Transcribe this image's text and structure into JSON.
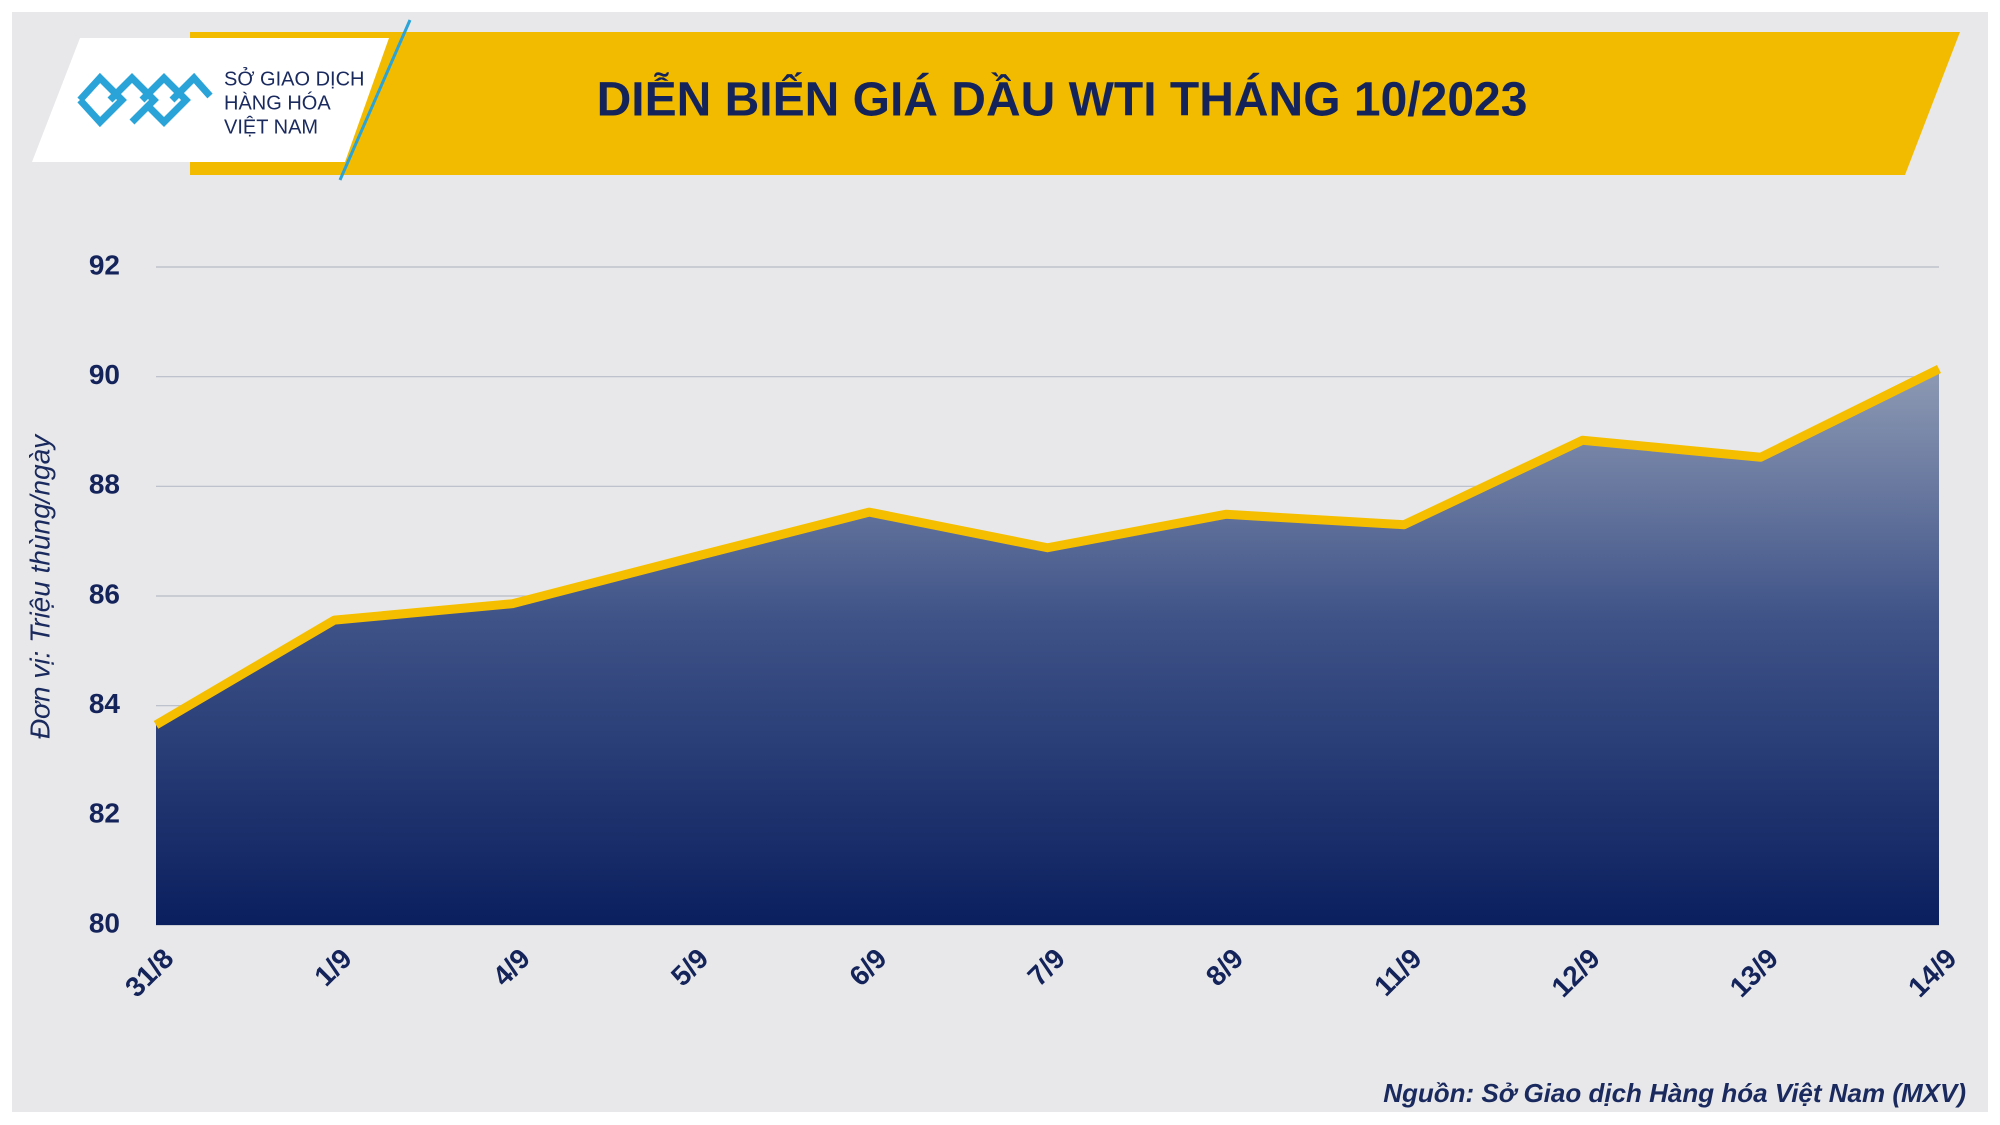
{
  "logo": {
    "lines": [
      "SỞ GIAO DỊCH",
      "HÀNG HÓA",
      "VIỆT NAM"
    ]
  },
  "chart_data": {
    "type": "area",
    "title": "DIỄN BIẾN GIÁ DẦU WTI THÁNG 10/2023",
    "y_label": "Đơn vị: Triệu thùng/ngày",
    "source": "Nguồn: Sở Giao dịch Hàng hóa Việt Nam (MXV)",
    "categories": [
      "31/8",
      "1/9",
      "4/9",
      "5/9",
      "6/9",
      "7/9",
      "8/9",
      "11/9",
      "12/9",
      "13/9",
      "14/9"
    ],
    "values": [
      83.65,
      85.56,
      85.86,
      86.7,
      87.53,
      86.88,
      87.49,
      87.3,
      88.84,
      88.53,
      90.14
    ],
    "color": "#f5bf00",
    "ylim": [
      80,
      92
    ],
    "yticks": [
      80,
      82,
      84,
      86,
      88,
      90,
      92
    ],
    "grid": true
  }
}
